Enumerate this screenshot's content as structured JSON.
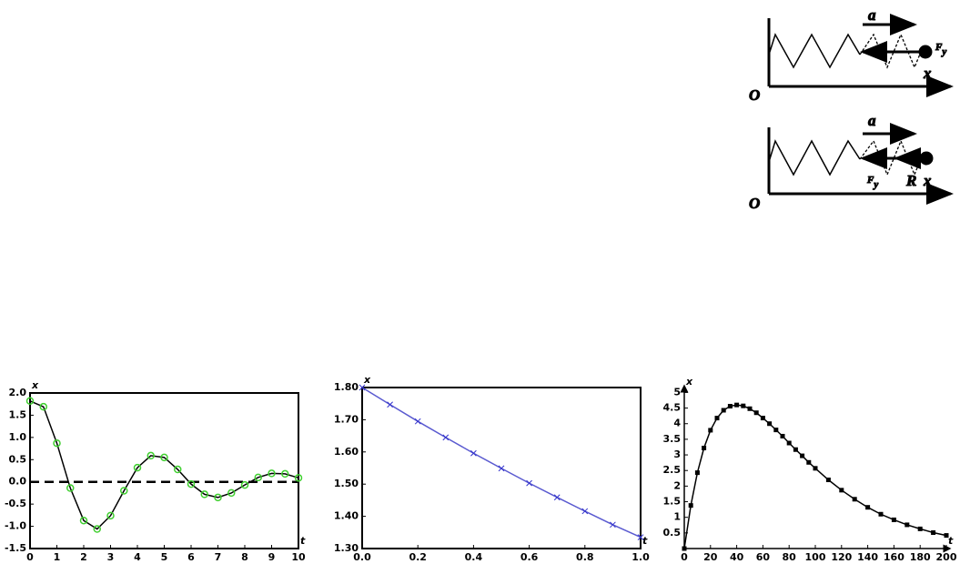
{
  "figure": {
    "top": {
      "a": "a",
      "F": "F",
      "Fsub": "y",
      "x": "x",
      "O": "O"
    },
    "bottom": {
      "a": "a",
      "F": "F",
      "Fsub": "y",
      "R": "R",
      "x": "x",
      "O": "O"
    }
  },
  "chart_data": [
    {
      "type": "line",
      "x_label": "t",
      "y_label": "x",
      "frame": true,
      "reference_line": 0,
      "x": [
        0,
        0.5,
        1,
        1.5,
        2,
        2.5,
        3,
        3.5,
        4,
        4.5,
        5,
        5.5,
        6,
        6.5,
        7,
        7.5,
        8,
        8.5,
        9,
        9.5,
        10
      ],
      "values": [
        1.82,
        1.69,
        0.87,
        -0.14,
        -0.87,
        -1.06,
        -0.76,
        -0.2,
        0.32,
        0.59,
        0.55,
        0.28,
        -0.05,
        -0.28,
        -0.35,
        -0.25,
        -0.07,
        0.1,
        0.19,
        0.18,
        0.09
      ],
      "color": "#000000",
      "marker": "circle",
      "marker_color": "#3fcf2f",
      "xlim": [
        0,
        10
      ],
      "ylim": [
        -1.5,
        2.0
      ],
      "xticks": [
        0,
        1,
        2,
        3,
        4,
        5,
        6,
        7,
        8,
        9,
        10
      ],
      "yticks": [
        {
          "value": -1.5,
          "label": "-1.5"
        },
        {
          "value": -1,
          "label": "-1.0"
        },
        {
          "value": -0.5,
          "label": "-0.5"
        },
        {
          "value": 0,
          "label": "0.0"
        },
        {
          "value": 0.5,
          "label": "0.5"
        },
        {
          "value": 1,
          "label": "1.0"
        },
        {
          "value": 1.5,
          "label": "1.5"
        },
        {
          "value": 2,
          "label": "2.0"
        }
      ]
    },
    {
      "type": "line",
      "x_label": "t",
      "y_label": "x",
      "frame": true,
      "x": [
        0,
        0.1,
        0.2,
        0.3,
        0.4,
        0.5,
        0.6,
        0.7,
        0.8,
        0.9,
        1
      ],
      "values": [
        1.8,
        1.747,
        1.695,
        1.645,
        1.596,
        1.549,
        1.503,
        1.459,
        1.416,
        1.374,
        1.335
      ],
      "color": "#5a5ad0",
      "marker": "cross",
      "marker_color": "#3333cc",
      "xlim": [
        0,
        1
      ],
      "ylim": [
        1.3,
        1.8
      ],
      "xticks": [
        {
          "value": 0,
          "label": "0.0"
        },
        {
          "value": 0.2,
          "label": "0.2"
        },
        {
          "value": 0.4,
          "label": "0.4"
        },
        {
          "value": 0.6,
          "label": "0.6"
        },
        {
          "value": 0.8,
          "label": "0.8"
        },
        {
          "value": 1,
          "label": "1.0"
        }
      ],
      "yticks": [
        {
          "value": 1.3,
          "label": "1.30"
        },
        {
          "value": 1.4,
          "label": "1.40"
        },
        {
          "value": 1.5,
          "label": "1.50"
        },
        {
          "value": 1.6,
          "label": "1.60"
        },
        {
          "value": 1.7,
          "label": "1.70"
        },
        {
          "value": 1.8,
          "label": "1.80"
        }
      ]
    },
    {
      "type": "line",
      "x_label": "t",
      "y_label": "x",
      "frame": false,
      "x": [
        0,
        5,
        10,
        15,
        20,
        25,
        30,
        35,
        40,
        45,
        50,
        55,
        60,
        65,
        70,
        75,
        80,
        85,
        90,
        95,
        100,
        110,
        120,
        130,
        140,
        150,
        160,
        170,
        180,
        190,
        200
      ],
      "values": [
        0,
        1.38,
        2.43,
        3.22,
        3.79,
        4.18,
        4.43,
        4.56,
        4.6,
        4.57,
        4.48,
        4.35,
        4.18,
        4.0,
        3.8,
        3.6,
        3.38,
        3.17,
        2.97,
        2.76,
        2.57,
        2.2,
        1.87,
        1.58,
        1.32,
        1.1,
        0.92,
        0.76,
        0.63,
        0.51,
        0.42
      ],
      "color": "#000000",
      "marker": "square",
      "marker_color": "#000000",
      "xlim": [
        0,
        200
      ],
      "ylim": [
        0,
        5.1
      ],
      "xticks": [
        0,
        20,
        40,
        60,
        80,
        100,
        120,
        140,
        160,
        180,
        200
      ],
      "yticks": [
        0.5,
        1,
        1.5,
        2,
        2.5,
        3,
        3.5,
        4,
        4.5,
        5
      ]
    }
  ]
}
